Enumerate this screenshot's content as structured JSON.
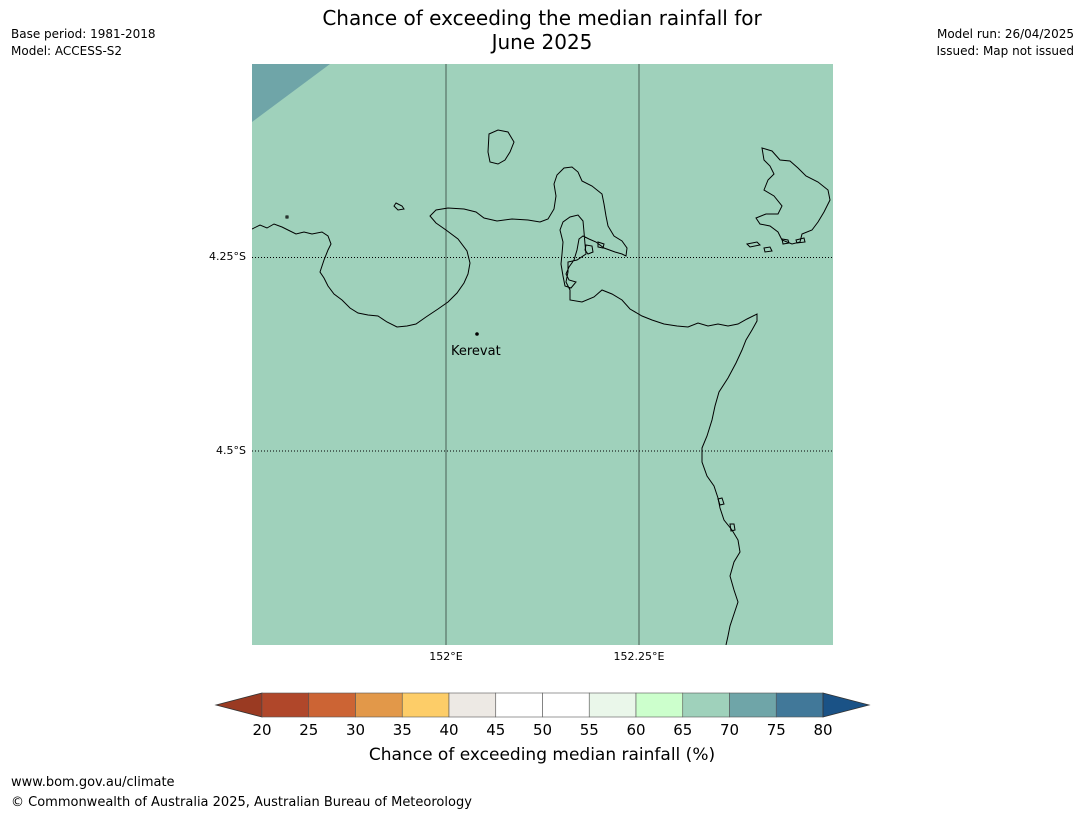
{
  "title": {
    "line1": "Chance of exceeding the median rainfall for",
    "line2": "June 2025"
  },
  "meta_left": {
    "base_period": "Base period: 1981-2018",
    "model": "Model: ACCESS-S2"
  },
  "meta_right": {
    "model_run": "Model run: 26/04/2025",
    "issued": "Issued: Map not issued"
  },
  "map": {
    "lat_labels": [
      "4.25°S",
      "4.5°S"
    ],
    "lon_labels": [
      "152°E",
      "152.25°E"
    ],
    "place": "Kerevat",
    "base_color": "#9fd1bb",
    "corner_color": "#6fa5a8"
  },
  "colorbar": {
    "ticks": [
      "20",
      "25",
      "30",
      "35",
      "40",
      "45",
      "50",
      "55",
      "60",
      "65",
      "70",
      "75",
      "80"
    ],
    "colors": [
      "#b0472a",
      "#cc6434",
      "#e29849",
      "#fdcd68",
      "#ede9e4",
      "#ffffff",
      "#ffffff",
      "#eaf7ea",
      "#ccffcc",
      "#9fd1bb",
      "#6fa5a8",
      "#417899"
    ],
    "low_extend_color": "#9a3a22",
    "high_extend_color": "#1a5286",
    "title": "Chance of exceeding median rainfall (%)"
  },
  "footer": {
    "url": "www.bom.gov.au/climate",
    "copyright": "© Commonwealth of Australia 2025, Australian Bureau of Meteorology"
  }
}
